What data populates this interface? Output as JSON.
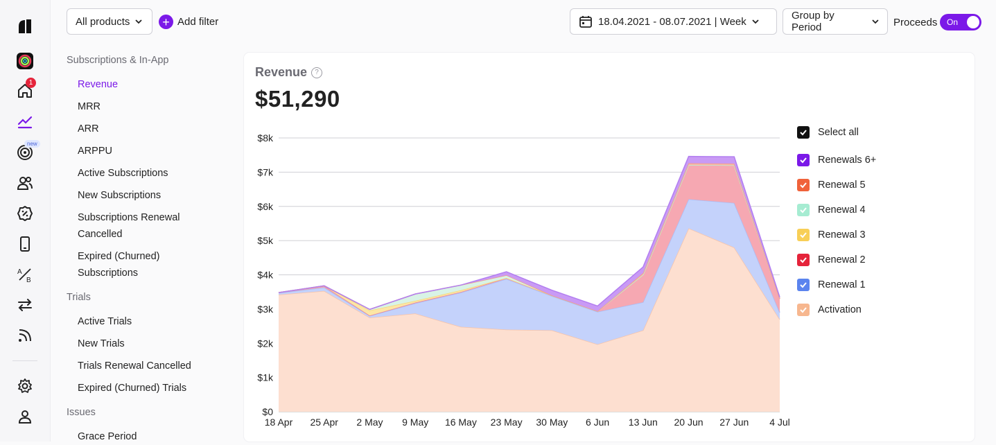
{
  "rail": {
    "items": [
      {
        "name": "logo-icon"
      },
      {
        "name": "app-icon"
      },
      {
        "name": "home-icon"
      },
      {
        "name": "analytics-icon"
      },
      {
        "name": "target-icon"
      },
      {
        "name": "users-icon"
      },
      {
        "name": "discount-icon"
      },
      {
        "name": "device-icon"
      },
      {
        "name": "ab-test-icon"
      },
      {
        "name": "transfer-icon"
      },
      {
        "name": "feed-icon"
      },
      {
        "name": "settings-icon"
      },
      {
        "name": "account-icon"
      }
    ],
    "home_badge": "1",
    "new_badge": "new"
  },
  "toolbar": {
    "products_label": "All products",
    "add_filter_label": "Add filter",
    "date_range": "18.04.2021 - 08.07.2021 | Week",
    "group_by": "Group by Period",
    "proceeds_label": "Proceeds",
    "proceeds_toggle": "On"
  },
  "nav": {
    "section_subs": "Subscriptions & In-App",
    "subs_items": [
      "Revenue",
      "MRR",
      "ARR",
      "ARPPU",
      "Active Subscriptions",
      "New Subscriptions",
      "Subscriptions Renewal Cancelled",
      "Expired (Churned) Subscriptions"
    ],
    "section_trials": "Trials",
    "trial_items": [
      "Active Trials",
      "New Trials",
      "Trials Renewal Cancelled",
      "Expired (Churned) Trials"
    ],
    "section_issues": "Issues",
    "issue_items": [
      "Grace Period"
    ]
  },
  "card": {
    "title": "Revenue",
    "help": "?",
    "total": "$51,290"
  },
  "legend": {
    "select_all": "Select all",
    "items": [
      {
        "label": "Renewals 6+",
        "color": "#7b19e8"
      },
      {
        "label": "Renewal 5",
        "color": "#f0623a"
      },
      {
        "label": "Renewal 4",
        "color": "#a6ecd2"
      },
      {
        "label": "Renewal 3",
        "color": "#f8cf57"
      },
      {
        "label": "Renewal 2",
        "color": "#e5243b"
      },
      {
        "label": "Renewal 1",
        "color": "#5b84ee"
      },
      {
        "label": "Activation",
        "color": "#f7b78f"
      }
    ]
  },
  "chart_data": {
    "type": "area",
    "categories": [
      "18 Apr",
      "25 Apr",
      "2 May",
      "9 May",
      "16 May",
      "23 May",
      "30 May",
      "6 Jun",
      "13 Jun",
      "20 Jun",
      "27 Jun",
      "4 Jul"
    ],
    "ylim": [
      0,
      8000
    ],
    "y_ticks": [
      "$0",
      "$1k",
      "$2k",
      "$3k",
      "$4k",
      "$5k",
      "$6k",
      "$7k",
      "$8k"
    ],
    "stacked": true,
    "series": [
      {
        "name": "Activation",
        "fill": "#fddfd0",
        "line": "#f7c3a8",
        "values": [
          3420,
          3530,
          2750,
          2870,
          2480,
          2400,
          2380,
          1970,
          2380,
          5360,
          4800,
          2700
        ]
      },
      {
        "name": "Renewal 1",
        "fill": "#c4d2fb",
        "line": "#a8bcf6",
        "values": [
          50,
          100,
          50,
          300,
          1000,
          1480,
          1000,
          950,
          820,
          850,
          1300,
          200
        ]
      },
      {
        "name": "Renewal 2",
        "fill": "#f6a8b2",
        "line": "#ee8898",
        "values": [
          10,
          40,
          10,
          20,
          20,
          30,
          20,
          20,
          800,
          1000,
          1100,
          400
        ]
      },
      {
        "name": "Renewal 3",
        "fill": "#fce6a6",
        "line": "#f8d577",
        "values": [
          0,
          10,
          150,
          50,
          50,
          0,
          0,
          0,
          0,
          0,
          0,
          0
        ]
      },
      {
        "name": "Renewal 4",
        "fill": "#d8f3e6",
        "line": "#bdebd5",
        "values": [
          0,
          0,
          30,
          200,
          150,
          80,
          0,
          0,
          0,
          0,
          0,
          0
        ]
      },
      {
        "name": "Renewal 5",
        "fill": "#f7b9a7",
        "line": "#f29c85",
        "values": [
          0,
          0,
          0,
          0,
          0,
          0,
          0,
          0,
          50,
          50,
          50,
          0
        ]
      },
      {
        "name": "Renewals 6+",
        "fill": "#c99af5",
        "line": "#b27ef0",
        "values": [
          0,
          0,
          0,
          0,
          0,
          100,
          150,
          150,
          180,
          200,
          200,
          50
        ]
      }
    ]
  }
}
